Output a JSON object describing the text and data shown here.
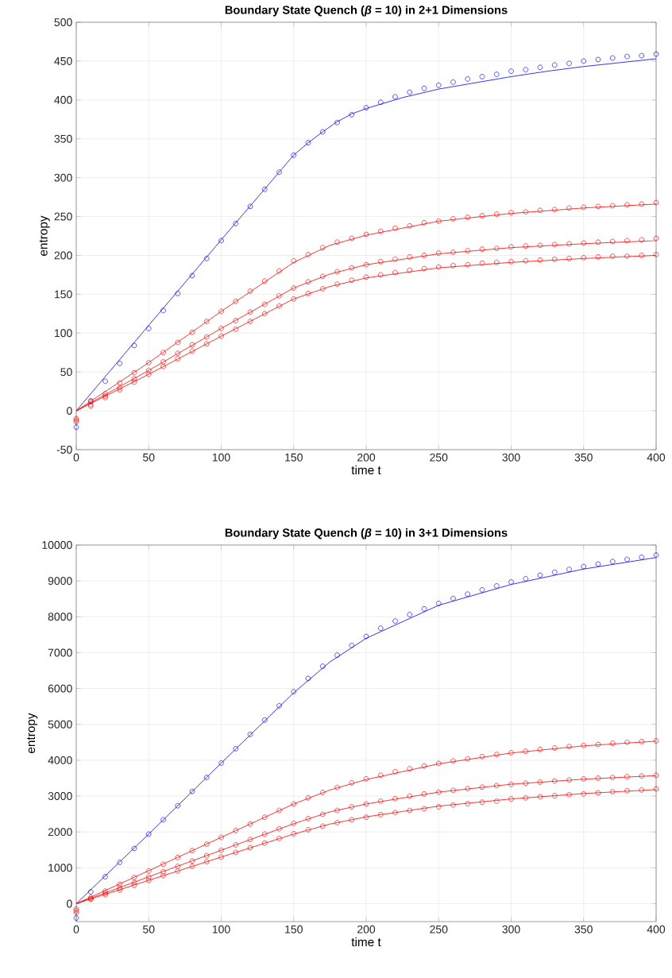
{
  "chart_data": [
    {
      "type": "scatter",
      "title": "Boundary State Quench (*β* = 10) in 2+1 Dimensions",
      "xlabel": "time t",
      "ylabel": "entropy",
      "xlim": [
        0,
        400
      ],
      "ylim": [
        -50,
        500
      ],
      "xticks": [
        0,
        50,
        100,
        150,
        200,
        250,
        300,
        350,
        400
      ],
      "yticks": [
        -50,
        0,
        50,
        100,
        150,
        200,
        250,
        300,
        350,
        400,
        450,
        500
      ],
      "grid": true,
      "x": [
        0,
        10,
        20,
        30,
        40,
        50,
        60,
        70,
        80,
        90,
        100,
        110,
        120,
        130,
        140,
        150,
        160,
        170,
        180,
        190,
        200,
        210,
        220,
        230,
        240,
        250,
        260,
        270,
        280,
        290,
        300,
        310,
        320,
        330,
        340,
        350,
        360,
        370,
        380,
        390,
        400
      ],
      "series": [
        {
          "type": "line",
          "marker": "none",
          "color": "#0000ff",
          "x": [
            0,
            50,
            100,
            150,
            160,
            170,
            180,
            190,
            200,
            225,
            250,
            275,
            300,
            325,
            350,
            375,
            400
          ],
          "values": [
            0,
            110,
            220,
            329,
            345,
            359,
            372,
            382,
            389,
            403,
            414,
            422,
            430,
            437,
            443,
            448,
            453
          ]
        },
        {
          "type": "line",
          "marker": "none",
          "color": "#ff0000",
          "x": [
            0,
            50,
            100,
            150,
            175,
            200,
            250,
            300,
            350,
            400
          ],
          "values": [
            0,
            62,
            128,
            191,
            213,
            226,
            244,
            254,
            261,
            266
          ]
        },
        {
          "type": "line",
          "marker": "none",
          "color": "#ff0000",
          "x": [
            0,
            50,
            100,
            150,
            175,
            200,
            250,
            300,
            350,
            400
          ],
          "values": [
            0,
            52,
            106,
            158,
            176,
            188,
            202,
            210,
            215,
            219
          ]
        },
        {
          "type": "line",
          "marker": "none",
          "color": "#ff0000",
          "x": [
            0,
            50,
            100,
            150,
            175,
            200,
            250,
            300,
            350,
            400
          ],
          "values": [
            0,
            47,
            96,
            144,
            160,
            171,
            184,
            191,
            196,
            200
          ]
        },
        {
          "marker": "circle",
          "color": "#0000ff",
          "values": [
            -21,
            12,
            38,
            61,
            84,
            106,
            129,
            151,
            174,
            196,
            219,
            241,
            263,
            285,
            307,
            329,
            345,
            359,
            371,
            381,
            390,
            397,
            404,
            410,
            415,
            419,
            423,
            427,
            430,
            433,
            437,
            439,
            442,
            445,
            447,
            450,
            452,
            454,
            456,
            457,
            459
          ]
        },
        {
          "marker": "circle",
          "color": "#ff0000",
          "values": [
            -10,
            13,
            22,
            36,
            49,
            62,
            75,
            88,
            101,
            115,
            128,
            141,
            154,
            167,
            180,
            193,
            201,
            210,
            217,
            222,
            227,
            231,
            235,
            238,
            242,
            244,
            247,
            249,
            251,
            253,
            255,
            256,
            258,
            259,
            261,
            262,
            263,
            264,
            265,
            266,
            268
          ]
        },
        {
          "marker": "circle",
          "color": "#ff0000",
          "values": [
            -12,
            8,
            19,
            30,
            41,
            52,
            63,
            74,
            85,
            95,
            106,
            116,
            127,
            137,
            148,
            158,
            166,
            173,
            179,
            184,
            188,
            192,
            195,
            198,
            200,
            203,
            204,
            206,
            208,
            209,
            211,
            212,
            213,
            214,
            215,
            216,
            217,
            218,
            219,
            220,
            222
          ]
        },
        {
          "marker": "circle",
          "color": "#ff0000",
          "values": [
            -14,
            6,
            17,
            27,
            37,
            47,
            57,
            67,
            77,
            86,
            96,
            105,
            115,
            125,
            135,
            144,
            151,
            157,
            163,
            168,
            172,
            175,
            178,
            181,
            183,
            185,
            187,
            188,
            190,
            191,
            192,
            193,
            194,
            195,
            196,
            197,
            198,
            199,
            199,
            200,
            201
          ]
        }
      ]
    },
    {
      "type": "scatter",
      "title": "Boundary State Quench (*β* = 10) in 3+1 Dimensions",
      "xlabel": "time t",
      "ylabel": "entropy",
      "xlim": [
        0,
        400
      ],
      "ylim": [
        -500,
        10000
      ],
      "xticks": [
        0,
        50,
        100,
        150,
        200,
        250,
        300,
        350,
        400
      ],
      "yticks": [
        0,
        1000,
        2000,
        3000,
        4000,
        5000,
        6000,
        7000,
        8000,
        9000,
        10000
      ],
      "grid": true,
      "x": [
        0,
        10,
        20,
        30,
        40,
        50,
        60,
        70,
        80,
        90,
        100,
        110,
        120,
        130,
        140,
        150,
        160,
        170,
        180,
        190,
        200,
        210,
        220,
        230,
        240,
        250,
        260,
        270,
        280,
        290,
        300,
        310,
        320,
        330,
        340,
        350,
        360,
        370,
        380,
        390,
        400
      ],
      "series": [
        {
          "type": "line",
          "marker": "none",
          "color": "#0000ff",
          "x": [
            0,
            50,
            100,
            150,
            175,
            200,
            250,
            300,
            350,
            400
          ],
          "values": [
            0,
            1940,
            3920,
            5880,
            6740,
            7400,
            8320,
            8900,
            9330,
            9650
          ]
        },
        {
          "type": "line",
          "marker": "none",
          "color": "#ff0000",
          "x": [
            0,
            50,
            100,
            150,
            175,
            200,
            250,
            300,
            350,
            400
          ],
          "values": [
            0,
            920,
            1850,
            2780,
            3170,
            3460,
            3900,
            4200,
            4400,
            4530
          ]
        },
        {
          "type": "line",
          "marker": "none",
          "color": "#ff0000",
          "x": [
            0,
            50,
            100,
            150,
            175,
            200,
            250,
            300,
            350,
            400
          ],
          "values": [
            0,
            750,
            1490,
            2230,
            2560,
            2780,
            3110,
            3330,
            3470,
            3570
          ]
        },
        {
          "type": "line",
          "marker": "none",
          "color": "#ff0000",
          "x": [
            0,
            50,
            100,
            150,
            175,
            200,
            250,
            300,
            350,
            400
          ],
          "values": [
            0,
            650,
            1300,
            1940,
            2220,
            2420,
            2720,
            2920,
            3070,
            3180
          ]
        },
        {
          "marker": "circle",
          "color": "#0000ff",
          "values": [
            -400,
            330,
            750,
            1150,
            1540,
            1940,
            2340,
            2730,
            3130,
            3520,
            3920,
            4320,
            4720,
            5120,
            5520,
            5910,
            6280,
            6620,
            6930,
            7200,
            7450,
            7680,
            7880,
            8060,
            8220,
            8370,
            8510,
            8630,
            8750,
            8860,
            8970,
            9060,
            9160,
            9240,
            9320,
            9400,
            9470,
            9540,
            9600,
            9660,
            9720
          ]
        },
        {
          "marker": "circle",
          "color": "#ff0000",
          "values": [
            -150,
            170,
            350,
            540,
            730,
            910,
            1100,
            1290,
            1480,
            1660,
            1850,
            2040,
            2220,
            2410,
            2600,
            2780,
            2950,
            3100,
            3240,
            3370,
            3480,
            3580,
            3680,
            3760,
            3840,
            3910,
            3980,
            4040,
            4100,
            4160,
            4210,
            4250,
            4300,
            4340,
            4380,
            4410,
            4440,
            4470,
            4500,
            4520,
            4540
          ]
        },
        {
          "marker": "circle",
          "color": "#ff0000",
          "values": [
            -200,
            140,
            290,
            440,
            590,
            740,
            890,
            1040,
            1190,
            1340,
            1490,
            1640,
            1790,
            1940,
            2090,
            2240,
            2370,
            2490,
            2600,
            2700,
            2780,
            2860,
            2930,
            3000,
            3060,
            3110,
            3160,
            3210,
            3250,
            3290,
            3330,
            3360,
            3390,
            3420,
            3450,
            3480,
            3500,
            3520,
            3540,
            3560,
            3580
          ]
        },
        {
          "marker": "circle",
          "color": "#ff0000",
          "values": [
            -250,
            120,
            250,
            380,
            510,
            650,
            780,
            910,
            1040,
            1170,
            1300,
            1430,
            1560,
            1690,
            1820,
            1950,
            2060,
            2160,
            2260,
            2340,
            2410,
            2480,
            2540,
            2600,
            2650,
            2700,
            2750,
            2790,
            2830,
            2860,
            2920,
            2950,
            2980,
            3010,
            3040,
            3060,
            3090,
            3120,
            3150,
            3170,
            3200
          ]
        }
      ]
    }
  ]
}
